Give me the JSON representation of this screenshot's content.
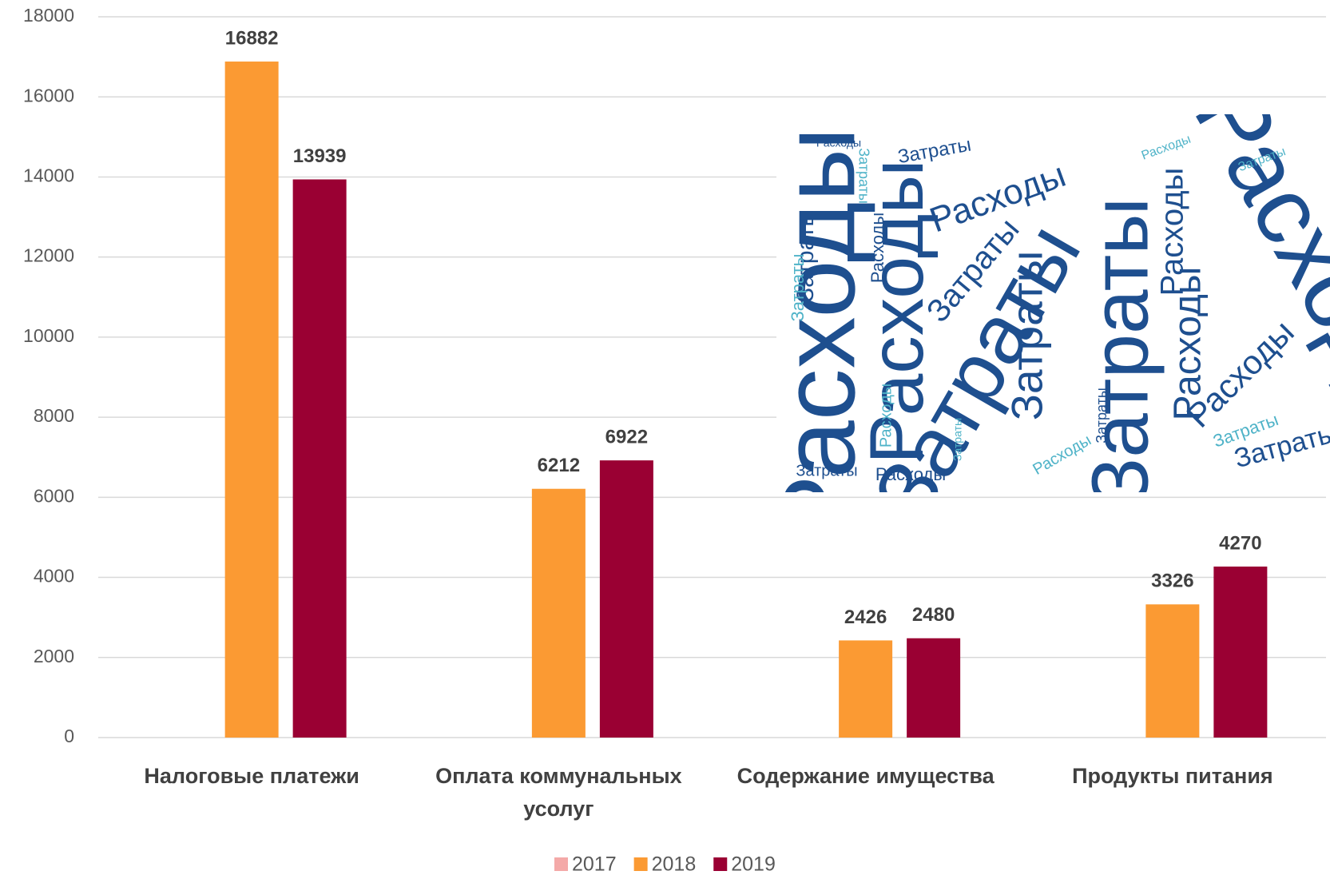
{
  "chart_data": {
    "type": "bar",
    "categories": [
      "Налоговые платежи",
      "Оплата коммунальных усолуг",
      "Содержание имущества",
      "Продукты питания"
    ],
    "series": [
      {
        "name": "2017",
        "color": "#f4a9a8",
        "values": [
          null,
          null,
          null,
          null
        ]
      },
      {
        "name": "2018",
        "color": "#fb9a33",
        "values": [
          16882,
          6212,
          2426,
          3326
        ]
      },
      {
        "name": "2019",
        "color": "#9a0033",
        "values": [
          13939,
          6922,
          2480,
          4270
        ]
      }
    ],
    "ylim": [
      0,
      18000
    ],
    "yticks": [
      0,
      2000,
      4000,
      6000,
      8000,
      10000,
      12000,
      14000,
      16000,
      18000
    ],
    "grid": true,
    "legend": "bottom",
    "image_words": [
      "Расходы",
      "Затраты"
    ]
  }
}
